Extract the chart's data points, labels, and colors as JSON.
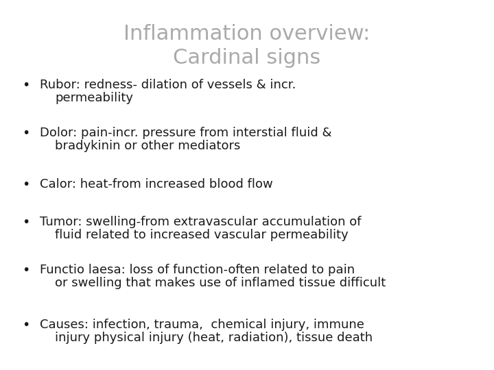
{
  "title_line1": "Inflammation overview:",
  "title_line2": "Cardinal signs",
  "title_color": "#aaaaaa",
  "title_fontsize": 22,
  "background_color": "#ffffff",
  "bullet_color": "#1a1a1a",
  "bullet_fontsize": 13,
  "bullet_symbol": "•",
  "bullets_line1": [
    "Rubor: redness- dilation of vessels & incr.",
    "Dolor: pain-incr. pressure from interstial fluid &",
    "Calor: heat-from increased blood flow",
    "Tumor: swelling-from extravascular accumulation of",
    "Functio laesa: loss of function-often related to pain",
    "Causes: infection, trauma,  chemical injury, immune"
  ],
  "bullets_line2": [
    "permeability",
    "bradykinin or other mediators",
    "",
    "fluid related to increased vascular permeability",
    "or swelling that makes use of inflamed tissue difficult",
    "injury physical injury (heat, radiation), tissue death"
  ],
  "fig_width": 7.2,
  "fig_height": 5.4,
  "dpi": 100
}
